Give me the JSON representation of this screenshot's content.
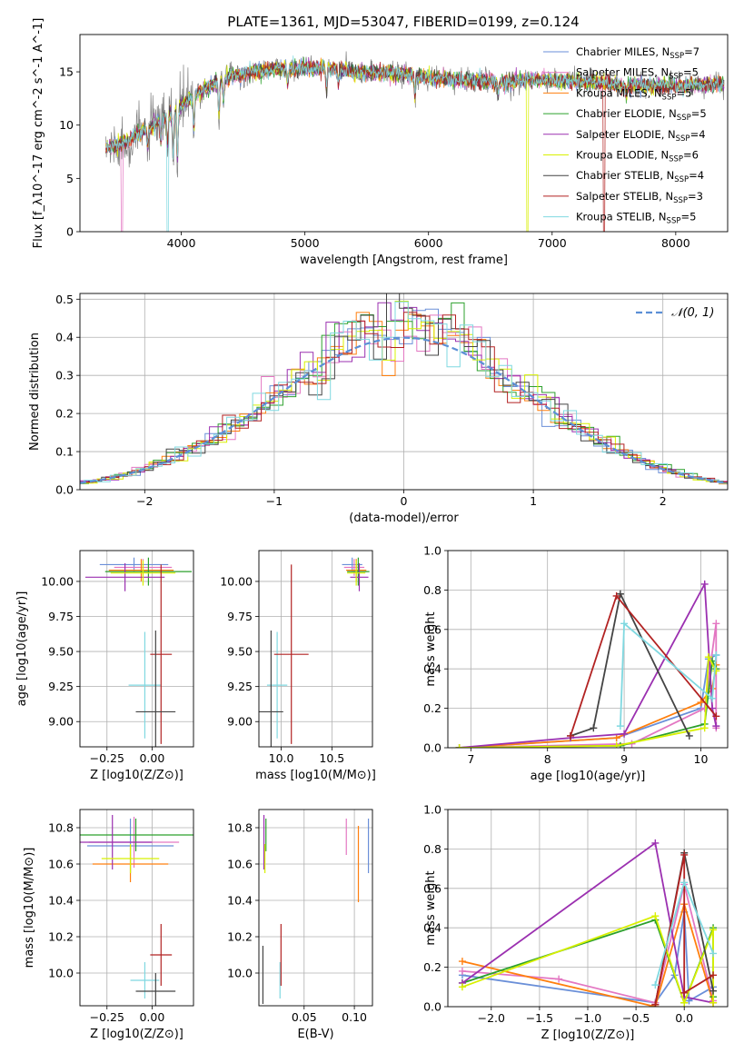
{
  "figure_title": "PLATE=1361, MJD=53047, FIBERID=0199, z=0.124",
  "colors": {
    "chabrier_miles": "#6a8fd8",
    "salpeter_miles": "#e377c2",
    "kroupa_miles": "#ff7f0e",
    "chabrier_elodie": "#2ca02c",
    "salpeter_elodie": "#9b30b0",
    "kroupa_elodie": "#d8f000",
    "chabrier_stelib": "#444444",
    "salpeter_stelib": "#b22222",
    "kroupa_stelib": "#7fd8e0",
    "data": "#808080",
    "normal_curve": "#5b8fd6"
  },
  "chart_data": [
    {
      "id": "spectrum",
      "type": "line",
      "title": "PLATE=1361, MJD=53047, FIBERID=0199, z=0.124",
      "xlabel": "wavelength [Angstrom, rest frame]",
      "ylabel": "Flux [f_λ10^-17 erg cm^-2 s^-1 A^-1]",
      "xlim": [
        3180,
        8420
      ],
      "ylim": [
        0,
        18.5
      ],
      "xticks": [
        4000,
        5000,
        6000,
        7000,
        8000
      ],
      "yticks": [
        0,
        5,
        10,
        15
      ],
      "grid": false,
      "legend_position": "top-right",
      "continuum": {
        "x": [
          3390,
          3550,
          3650,
          3750,
          3850,
          3950,
          4050,
          4200,
          4400,
          4600,
          4800,
          5000,
          5200,
          5400,
          5600,
          5800,
          6000,
          6200,
          6400,
          6600,
          6800,
          7000,
          7200,
          7400,
          7600,
          7800,
          8000,
          8200,
          8390
        ],
        "y": [
          7.8,
          8.4,
          9.1,
          9.8,
          10.6,
          11.3,
          12.3,
          13.5,
          14.6,
          15.0,
          15.3,
          15.4,
          15.3,
          15.0,
          14.9,
          14.8,
          14.5,
          14.3,
          14.2,
          14.0,
          14.2,
          14.2,
          14.1,
          14.0,
          13.7,
          13.7,
          13.6,
          13.8,
          13.8
        ]
      },
      "absorption_lines": [
        {
          "x": 3727,
          "depth": 1.5
        },
        {
          "x": 3835,
          "depth": 2.0
        },
        {
          "x": 3889,
          "depth": 2.8
        },
        {
          "x": 3934,
          "depth": 4.0
        },
        {
          "x": 3969,
          "depth": 4.5
        },
        {
          "x": 4102,
          "depth": 3.0
        },
        {
          "x": 4304,
          "depth": 3.0
        },
        {
          "x": 4341,
          "depth": 2.0
        },
        {
          "x": 4861,
          "depth": 1.5
        },
        {
          "x": 5175,
          "depth": 2.0
        },
        {
          "x": 5270,
          "depth": 1.2
        },
        {
          "x": 5890,
          "depth": 2.0
        },
        {
          "x": 6563,
          "depth": 1.0
        },
        {
          "x": 7600,
          "depth": 0.8
        }
      ],
      "model_dropouts": [
        {
          "name": "Salpeter MILES",
          "x": 3520
        },
        {
          "name": "Kroupa STELIB",
          "x": 3890
        },
        {
          "name": "Kroupa ELODIE",
          "x": 6800
        },
        {
          "name": "Salpeter STELIB",
          "x": 7420
        }
      ],
      "series": [
        {
          "key": "chabrier_miles",
          "label_pre": "Chabrier MILES, N",
          "label_post": "=7"
        },
        {
          "key": "salpeter_miles",
          "label_pre": "Salpeter MILES, N",
          "label_post": "=5"
        },
        {
          "key": "kroupa_miles",
          "label_pre": "Kroupa MILES, N",
          "label_post": "=5"
        },
        {
          "key": "chabrier_elodie",
          "label_pre": "Chabrier ELODIE, N",
          "label_post": "=5"
        },
        {
          "key": "salpeter_elodie",
          "label_pre": "Salpeter ELODIE, N",
          "label_post": "=4"
        },
        {
          "key": "kroupa_elodie",
          "label_pre": "Kroupa ELODIE, N",
          "label_post": "=6"
        },
        {
          "key": "chabrier_stelib",
          "label_pre": "Chabrier STELIB, N",
          "label_post": "=4"
        },
        {
          "key": "salpeter_stelib",
          "label_pre": "Salpeter STELIB, N",
          "label_post": "=3"
        },
        {
          "key": "kroupa_stelib",
          "label_pre": "Kroupa STELIB, N",
          "label_post": "=5"
        }
      ],
      "legend_subscript": "SSP"
    },
    {
      "id": "residuals",
      "type": "line",
      "xlabel": "(data-model)/error",
      "ylabel": "Normed distribution",
      "xlim": [
        -2.5,
        2.5
      ],
      "ylim": [
        0,
        0.515
      ],
      "xticks": [
        -2,
        -1,
        0,
        1,
        2
      ],
      "yticks": [
        0.0,
        0.1,
        0.2,
        0.3,
        0.4,
        0.5
      ],
      "grid": true,
      "legend_position": "top-right",
      "legend_label": "𝒩(0, 1)",
      "bin_width": 0.1
    },
    {
      "id": "age_vs_Z",
      "type": "scatter",
      "xlabel": "Z [log10(Z/Z⊙)]",
      "ylabel": "age  [log10(age/yr)]",
      "xlim": [
        -0.4,
        0.23
      ],
      "ylim": [
        8.82,
        10.22
      ],
      "xticks": [
        -0.25,
        0.0
      ],
      "yticks": [
        9.0,
        9.25,
        9.5,
        9.75,
        10.0
      ],
      "grid": true,
      "points": [
        {
          "key": "chabrier_miles",
          "x": -0.1,
          "xe": 0.19,
          "y": 10.12,
          "ye": 0.05
        },
        {
          "key": "salpeter_miles",
          "x": -0.05,
          "xe": 0.16,
          "y": 10.1,
          "ye": 0.06
        },
        {
          "key": "kroupa_miles",
          "x": -0.06,
          "xe": 0.18,
          "y": 10.08,
          "ye": 0.08
        },
        {
          "key": "chabrier_elodie",
          "x": -0.02,
          "xe": 0.24,
          "y": 10.07,
          "ye": 0.1
        },
        {
          "key": "salpeter_elodie",
          "x": -0.15,
          "xe": 0.22,
          "y": 10.03,
          "ye": 0.1
        },
        {
          "key": "kroupa_elodie",
          "x": -0.05,
          "xe": 0.18,
          "y": 10.06,
          "ye": 0.09
        },
        {
          "key": "kroupa_stelib",
          "x": -0.04,
          "xe": 0.09,
          "y": 9.26,
          "ye": 0.38
        },
        {
          "key": "salpeter_stelib",
          "x": 0.05,
          "xe": 0.06,
          "y": 9.48,
          "ye": 0.64
        },
        {
          "key": "chabrier_stelib",
          "x": 0.02,
          "xe": 0.11,
          "y": 9.07,
          "ye": 0.58
        }
      ]
    },
    {
      "id": "age_vs_mass",
      "type": "scatter",
      "xlabel": "mass [log10(M/M⊙)]",
      "ylabel": "",
      "xlim": [
        9.78,
        10.9
      ],
      "ylim": [
        8.82,
        10.22
      ],
      "xticks": [
        10.0,
        10.5
      ],
      "yticks": [
        9.0,
        9.25,
        9.5,
        9.75,
        10.0
      ],
      "grid": true,
      "points": [
        {
          "key": "chabrier_miles",
          "x": 10.7,
          "xe": 0.1,
          "y": 10.12,
          "ye": 0.05
        },
        {
          "key": "salpeter_miles",
          "x": 10.72,
          "xe": 0.1,
          "y": 10.1,
          "ye": 0.06
        },
        {
          "key": "kroupa_miles",
          "x": 10.74,
          "xe": 0.1,
          "y": 10.08,
          "ye": 0.08
        },
        {
          "key": "chabrier_elodie",
          "x": 10.76,
          "xe": 0.11,
          "y": 10.07,
          "ye": 0.1
        },
        {
          "key": "salpeter_elodie",
          "x": 10.77,
          "xe": 0.09,
          "y": 10.03,
          "ye": 0.1
        },
        {
          "key": "kroupa_elodie",
          "x": 10.74,
          "xe": 0.09,
          "y": 10.06,
          "ye": 0.09
        },
        {
          "key": "kroupa_stelib",
          "x": 9.96,
          "xe": 0.1,
          "y": 9.26,
          "ye": 0.38
        },
        {
          "key": "salpeter_stelib",
          "x": 10.1,
          "xe": 0.17,
          "y": 9.48,
          "ye": 0.64
        },
        {
          "key": "chabrier_stelib",
          "x": 9.9,
          "xe": 0.12,
          "y": 9.07,
          "ye": 0.58
        }
      ]
    },
    {
      "id": "weight_vs_age",
      "type": "line",
      "xlabel": "age  [log10(age/yr)]",
      "ylabel": "mass weight",
      "xlim": [
        6.7,
        10.35
      ],
      "ylim": [
        0,
        1.0
      ],
      "xticks": [
        7,
        8,
        9,
        10
      ],
      "yticks": [
        0.0,
        0.2,
        0.4,
        0.6,
        0.8,
        1.0
      ],
      "grid": true,
      "series": [
        {
          "key": "chabrier_miles",
          "x": [
            6.85,
            8.9,
            10.0,
            10.1,
            10.2
          ],
          "y": [
            0.0,
            0.05,
            0.2,
            0.45,
            0.47
          ]
        },
        {
          "key": "salpeter_miles",
          "x": [
            6.85,
            9.1,
            10.05,
            10.2,
            10.2
          ],
          "y": [
            0.0,
            0.02,
            0.2,
            0.63,
            0.1
          ]
        },
        {
          "key": "kroupa_miles",
          "x": [
            6.85,
            8.9,
            10.0,
            10.15,
            10.2
          ],
          "y": [
            0.0,
            0.05,
            0.23,
            0.3,
            0.42
          ]
        },
        {
          "key": "chabrier_elodie",
          "x": [
            6.85,
            8.95,
            10.05,
            10.15,
            10.2
          ],
          "y": [
            0.0,
            0.01,
            0.12,
            0.44,
            0.4
          ]
        },
        {
          "key": "salpeter_elodie",
          "x": [
            6.85,
            8.3,
            9.0,
            10.05,
            10.15,
            10.2
          ],
          "y": [
            0.0,
            0.05,
            0.07,
            0.83,
            0.2,
            0.11
          ]
        },
        {
          "key": "kroupa_elodie",
          "x": [
            6.85,
            8.9,
            10.05,
            10.1,
            10.2
          ],
          "y": [
            0.0,
            0.01,
            0.1,
            0.46,
            0.39
          ]
        },
        {
          "key": "chabrier_stelib",
          "x": [
            8.3,
            8.6,
            8.95,
            9.85
          ],
          "y": [
            0.06,
            0.1,
            0.78,
            0.06
          ]
        },
        {
          "key": "salpeter_stelib",
          "x": [
            8.3,
            8.9,
            10.2
          ],
          "y": [
            0.06,
            0.77,
            0.16
          ]
        },
        {
          "key": "kroupa_stelib",
          "x": [
            8.95,
            9.0,
            10.15,
            10.2
          ],
          "y": [
            0.11,
            0.63,
            0.25,
            0.47
          ]
        }
      ]
    },
    {
      "id": "mass_vs_Z",
      "type": "scatter",
      "xlabel": "Z [log10(Z/Z⊙)]",
      "ylabel": "mass [log10(M/M⊙)]",
      "xlim": [
        -0.4,
        0.23
      ],
      "ylim": [
        9.82,
        10.9
      ],
      "xticks": [
        -0.25,
        0.0
      ],
      "yticks": [
        10.0,
        10.2,
        10.4,
        10.6,
        10.8
      ],
      "grid": true,
      "points": [
        {
          "key": "chabrier_miles",
          "x": -0.12,
          "xe": 0.24,
          "y": 10.7,
          "ye": 0.15
        },
        {
          "key": "salpeter_miles",
          "x": -0.1,
          "xe": 0.25,
          "y": 10.72,
          "ye": 0.14
        },
        {
          "key": "kroupa_miles",
          "x": -0.12,
          "xe": 0.21,
          "y": 10.6,
          "ye": 0.1
        },
        {
          "key": "chabrier_elodie",
          "x": -0.09,
          "xe": 0.32,
          "y": 10.76,
          "ye": 0.09
        },
        {
          "key": "salpeter_elodie",
          "x": -0.22,
          "xe": 0.22,
          "y": 10.72,
          "ye": 0.15
        },
        {
          "key": "kroupa_elodie",
          "x": -0.12,
          "xe": 0.16,
          "y": 10.63,
          "ye": 0.08
        },
        {
          "key": "kroupa_stelib",
          "x": -0.04,
          "xe": 0.08,
          "y": 9.96,
          "ye": 0.1
        },
        {
          "key": "salpeter_stelib",
          "x": 0.05,
          "xe": 0.06,
          "y": 10.1,
          "ye": 0.17
        },
        {
          "key": "chabrier_stelib",
          "x": 0.02,
          "xe": 0.11,
          "y": 9.9,
          "ye": 0.1
        }
      ]
    },
    {
      "id": "mass_vs_ebv",
      "type": "scatter",
      "xlabel": "E(B-V)",
      "ylabel": "",
      "xlim": [
        0.005,
        0.118
      ],
      "ylim": [
        9.82,
        10.9
      ],
      "xticks": [
        0.05,
        0.1
      ],
      "yticks": [
        10.0,
        10.2,
        10.4,
        10.6,
        10.8
      ],
      "grid": true,
      "points": [
        {
          "key": "chabrier_miles",
          "x": 0.114,
          "y": 10.7,
          "ye": 0.15
        },
        {
          "key": "salpeter_miles",
          "x": 0.092,
          "y": 10.75,
          "ye": 0.1
        },
        {
          "key": "kroupa_miles",
          "x": 0.104,
          "y": 10.6,
          "ye": 0.21
        },
        {
          "key": "chabrier_elodie",
          "x": 0.012,
          "y": 10.76,
          "ye": 0.09
        },
        {
          "key": "salpeter_elodie",
          "x": 0.01,
          "y": 10.72,
          "ye": 0.15
        },
        {
          "key": "kroupa_elodie",
          "x": 0.011,
          "y": 10.63,
          "ye": 0.08
        },
        {
          "key": "kroupa_stelib",
          "x": 0.026,
          "y": 9.96,
          "ye": 0.1
        },
        {
          "key": "salpeter_stelib",
          "x": 0.027,
          "y": 10.1,
          "ye": 0.17
        },
        {
          "key": "chabrier_stelib",
          "x": 0.009,
          "y": 9.99,
          "ye": 0.16
        }
      ]
    },
    {
      "id": "weight_vs_Z",
      "type": "line",
      "xlabel": "Z [log10(Z/Z⊙)]",
      "ylabel": "mass weight",
      "xlim": [
        -2.45,
        0.45
      ],
      "ylim": [
        0,
        1.0
      ],
      "xticks": [
        -2.0,
        -1.5,
        -1.0,
        -0.5,
        0.0
      ],
      "yticks": [
        0.0,
        0.2,
        0.4,
        0.6,
        0.8,
        1.0
      ],
      "grid": true,
      "series": [
        {
          "key": "chabrier_miles",
          "x": [
            -2.3,
            -0.3,
            -0.1,
            0.0,
            0.05,
            0.3
          ],
          "y": [
            0.16,
            0.02,
            0.16,
            0.48,
            0.03,
            0.1
          ]
        },
        {
          "key": "salpeter_miles",
          "x": [
            -2.3,
            -1.3,
            -0.3,
            0.0,
            0.3
          ],
          "y": [
            0.18,
            0.14,
            0.02,
            0.62,
            0.03
          ]
        },
        {
          "key": "kroupa_miles",
          "x": [
            -2.3,
            -0.3,
            0.0,
            0.3
          ],
          "y": [
            0.23,
            0.0,
            0.52,
            0.02
          ]
        },
        {
          "key": "chabrier_elodie",
          "x": [
            -2.3,
            -0.3,
            0.0,
            0.3,
            0.3
          ],
          "y": [
            0.12,
            0.44,
            0.02,
            0.4,
            0.05
          ]
        },
        {
          "key": "salpeter_elodie",
          "x": [
            -2.3,
            -0.3,
            0.0,
            0.3
          ],
          "y": [
            0.12,
            0.83,
            0.05,
            0.02
          ]
        },
        {
          "key": "kroupa_elodie",
          "x": [
            -2.3,
            -0.3,
            0.0,
            0.3,
            0.3
          ],
          "y": [
            0.1,
            0.46,
            0.02,
            0.39,
            0.02
          ]
        },
        {
          "key": "chabrier_stelib",
          "x": [
            -0.3,
            0.0,
            0.3
          ],
          "y": [
            0.01,
            0.78,
            0.08
          ]
        },
        {
          "key": "salpeter_stelib",
          "x": [
            -0.3,
            0.0,
            0.0,
            0.3
          ],
          "y": [
            0.01,
            0.77,
            0.07,
            0.16
          ]
        },
        {
          "key": "kroupa_stelib",
          "x": [
            -0.3,
            0.0,
            0.3
          ],
          "y": [
            0.11,
            0.63,
            0.27
          ]
        }
      ]
    }
  ]
}
